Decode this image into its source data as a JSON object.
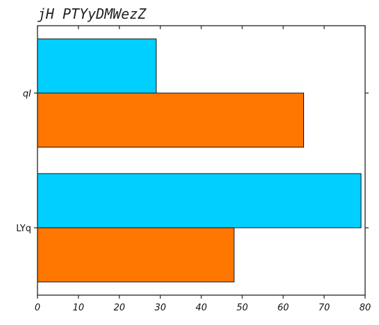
{
  "chart_data": {
    "type": "bar",
    "orientation": "horizontal",
    "title": "jH PTYyDMWezZ",
    "xlabel": "",
    "ylabel": "",
    "categories": [
      "LYq",
      "qI"
    ],
    "category_label_styles": [
      "normal",
      "italic"
    ],
    "series": [
      {
        "color": "#FF7700",
        "values": [
          48,
          65
        ]
      },
      {
        "color": "#00CFFF",
        "values": [
          79,
          29
        ]
      }
    ],
    "xlim": [
      0,
      80
    ],
    "xticks": [
      0,
      10,
      20,
      30,
      40,
      50,
      60,
      70,
      80
    ],
    "grid": false,
    "legend": "none"
  }
}
